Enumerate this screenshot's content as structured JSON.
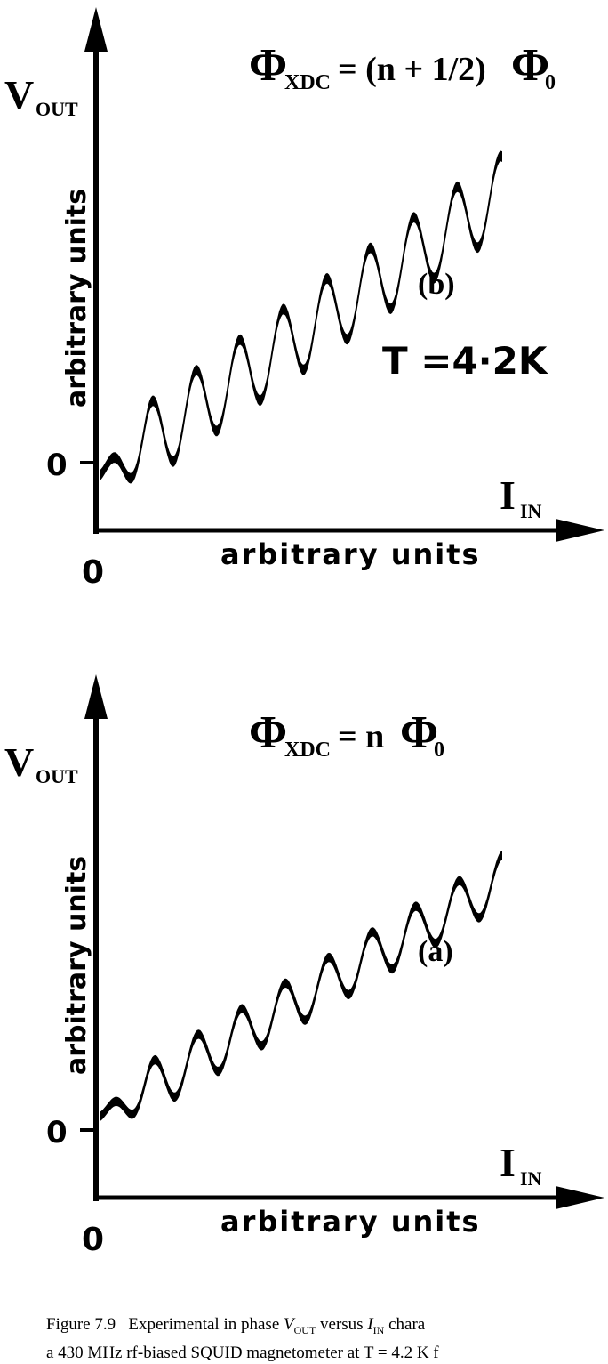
{
  "chart_data": [
    {
      "type": "line",
      "panel_label": "(b)",
      "condition": {
        "symbol": "Φ",
        "subscript": "XDC",
        "rhs_prefix": " = (n + 1/2)",
        "rhs_symbol": "Φ",
        "rhs_subscript": "0"
      },
      "temperature": "T =4·2K",
      "y_axis": {
        "title": "V",
        "title_sub": "OUT",
        "label": "arbitrary units",
        "zero_tick": "0"
      },
      "x_axis": {
        "title": "I",
        "title_sub": "IN",
        "label": "arbitrary units",
        "zero_tick": "0"
      },
      "xlim": [
        0,
        10
      ],
      "ylim": [
        -1.0,
        10
      ],
      "trend": {
        "intercept": -0.4,
        "slope": 0.86
      },
      "oscillation": {
        "amplitude": 1.15,
        "period": 1.08,
        "phase": 0.25
      },
      "x_range": [
        0.0,
        10.0
      ],
      "band_thickness": 0.32
    },
    {
      "type": "line",
      "panel_label": "(a)",
      "condition": {
        "symbol": "Φ",
        "subscript": "XDC",
        "rhs_prefix": " = n",
        "rhs_symbol": "Φ",
        "rhs_subscript": "0"
      },
      "y_axis": {
        "title": "V",
        "title_sub": "OUT",
        "label": "arbitrary units",
        "zero_tick": "0"
      },
      "x_axis": {
        "title": "I",
        "title_sub": "IN",
        "label": "arbitrary units",
        "zero_tick": "0"
      },
      "xlim": [
        0,
        10
      ],
      "ylim": [
        -1.0,
        10
      ],
      "trend": {
        "intercept": 0.4,
        "slope": 0.72
      },
      "oscillation": {
        "amplitude": 0.75,
        "period": 1.08,
        "phase": 0.0
      },
      "x_range": [
        0.0,
        10.0
      ],
      "band_thickness": 0.28
    }
  ],
  "caption": {
    "fig": "Figure 7.9",
    "text1": "Experimental in phase ",
    "v": "V",
    "v_sub": "OUT",
    "mid": " versus ",
    "i": "I",
    "i_sub": "IN",
    "text2": " chara",
    "line2": "a 430 MHz rf-biased SQUID magnetometer at T = 4.2 K f"
  }
}
